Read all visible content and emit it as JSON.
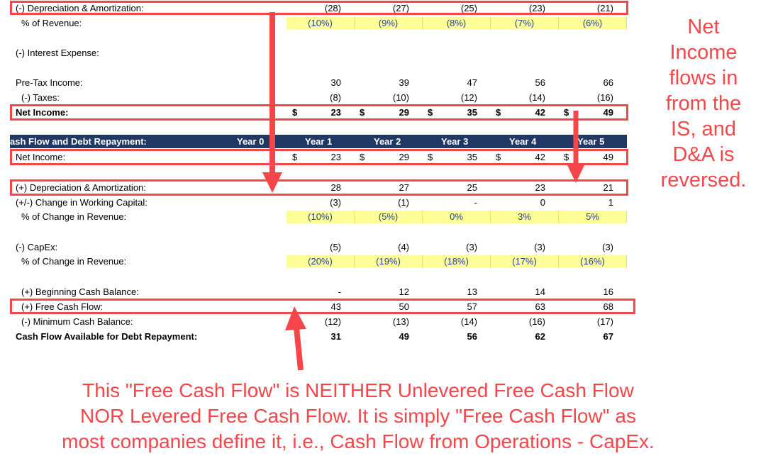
{
  "rows": [
    {
      "key": "da_is",
      "label": "(-) Depreciation & Amortization:",
      "indent": 0,
      "vals": [
        "(28)",
        "(27)",
        "(25)",
        "(23)",
        "(21)"
      ]
    },
    {
      "key": "da_pct",
      "label": "% of Revenue:",
      "indent": 1,
      "pct": [
        "(10%)",
        "(9%)",
        "(8%)",
        "(7%)",
        "(6%)"
      ]
    },
    {
      "key": "interest",
      "label": "(-) Interest Expense:",
      "indent": 0,
      "vals": [
        "",
        "",
        "",
        "",
        ""
      ]
    },
    {
      "key": "pretax",
      "label": "Pre-Tax Income:",
      "indent": 0,
      "vals": [
        "30",
        "39",
        "47",
        "56",
        "66"
      ]
    },
    {
      "key": "taxes",
      "label": "(-) Taxes:",
      "indent": 1,
      "vals": [
        "(8)",
        "(10)",
        "(12)",
        "(14)",
        "(16)"
      ]
    },
    {
      "key": "ni_is",
      "label": "Net Income:",
      "indent": 0,
      "bold": true,
      "dollar": true,
      "vals": [
        "23",
        "29",
        "35",
        "42",
        "49"
      ]
    },
    {
      "key": "ni_cf",
      "label": "Net Income:",
      "indent": 0,
      "dollar": true,
      "vals": [
        "23",
        "29",
        "35",
        "42",
        "49"
      ]
    },
    {
      "key": "da_cf",
      "label": "(+) Depreciation & Amortization:",
      "indent": 0,
      "vals": [
        "28",
        "27",
        "25",
        "23",
        "21"
      ]
    },
    {
      "key": "wc",
      "label": "(+/-) Change in Working Capital:",
      "indent": 0,
      "vals": [
        "(3)",
        "(1)",
        "-",
        "0",
        "1"
      ]
    },
    {
      "key": "wc_pct",
      "label": "% of Change in Revenue:",
      "indent": 1,
      "pct": [
        "(10%)",
        "(5%)",
        "0%",
        "3%",
        "5%"
      ]
    },
    {
      "key": "capex",
      "label": "(-) CapEx:",
      "indent": 0,
      "vals": [
        "(5)",
        "(4)",
        "(3)",
        "(3)",
        "(3)"
      ]
    },
    {
      "key": "capex_pct",
      "label": "% of Change in Revenue:",
      "indent": 1,
      "pct": [
        "(20%)",
        "(19%)",
        "(18%)",
        "(17%)",
        "(16%)"
      ]
    },
    {
      "key": "begcash",
      "label": "(+) Beginning Cash Balance:",
      "indent": 1,
      "vals": [
        "-",
        "12",
        "13",
        "14",
        "16"
      ]
    },
    {
      "key": "fcf",
      "label": "(+) Free Cash Flow:",
      "indent": 1,
      "vals": [
        "43",
        "50",
        "57",
        "63",
        "68"
      ]
    },
    {
      "key": "mincash",
      "label": "(-) Minimum Cash Balance:",
      "indent": 1,
      "vals": [
        "(12)",
        "(13)",
        "(14)",
        "(16)",
        "(17)"
      ]
    },
    {
      "key": "cfadr",
      "label": "Cash Flow Available for Debt Repayment:",
      "indent": 0,
      "bold": true,
      "vals": [
        "31",
        "49",
        "56",
        "62",
        "67"
      ]
    }
  ],
  "dollar_sign": "$",
  "header": {
    "title": "ash Flow and Debt Repayment:",
    "years": [
      "Year 0",
      "Year 1",
      "Year 2",
      "Year 3",
      "Year 4",
      "Year 5"
    ]
  },
  "notes": {
    "right": [
      "Net",
      "Income",
      "flows in",
      "from the",
      "IS, and",
      "D&A is",
      "reversed."
    ],
    "bottom": [
      "This \"Free Cash Flow\" is NEITHER Unlevered Free Cash Flow",
      "NOR Levered Free Cash Flow. It is simply \"Free Cash Flow\" as",
      "most companies define it, i.e., Cash Flow from Operations - CapEx."
    ]
  },
  "colors": {
    "accent": "#f5474a",
    "header_bg": "#1f3864",
    "input_fill": "#ffff99",
    "input_text": "#1f3fa8"
  }
}
